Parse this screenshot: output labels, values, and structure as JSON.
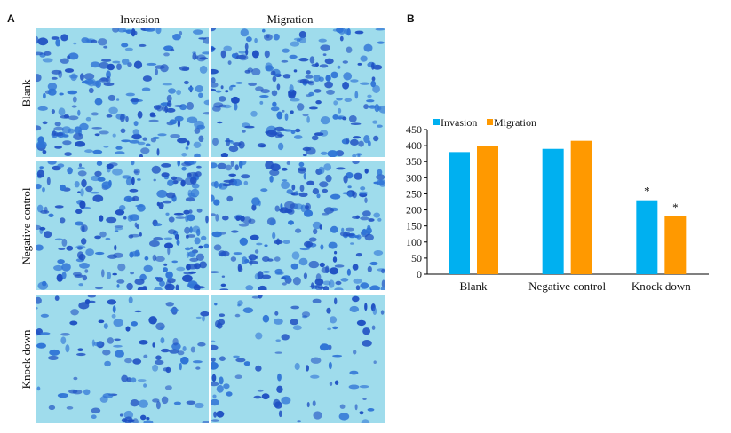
{
  "panel_a": {
    "letter": "A",
    "columns": [
      "Invasion",
      "Migration"
    ],
    "rows": [
      "Blank",
      "Negative control",
      "Knock down"
    ]
  },
  "panel_b": {
    "letter": "B"
  },
  "colors": {
    "invasion": "#00b0f0",
    "migration": "#ff9900",
    "cell_dark": "#1e4fc2",
    "cell_mid": "#2f74d6",
    "background": "#9fdcec"
  },
  "chart_data": {
    "type": "bar",
    "categories": [
      "Blank",
      "Negative control",
      "Knock down"
    ],
    "series": [
      {
        "name": "Invasion",
        "values": [
          380,
          390,
          230
        ]
      },
      {
        "name": "Migration",
        "values": [
          400,
          415,
          180
        ]
      }
    ],
    "ylim": [
      0,
      450
    ],
    "yticks": [
      0,
      50,
      100,
      150,
      200,
      250,
      300,
      350,
      400,
      450
    ],
    "legend": "top-left",
    "grid": false,
    "annotations": [
      {
        "category": "Knock down",
        "series": "Invasion",
        "text": "*"
      },
      {
        "category": "Knock down",
        "series": "Migration",
        "text": "*"
      }
    ]
  }
}
